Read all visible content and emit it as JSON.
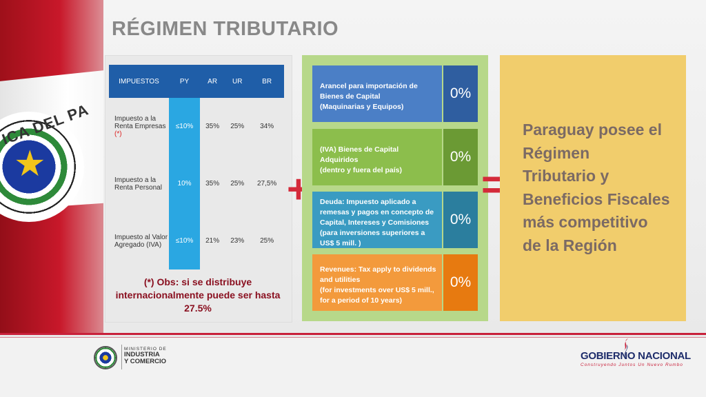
{
  "slide": {
    "title": "RÉGIMEN TRIBUTARIO"
  },
  "table": {
    "headers": [
      "IMPUESTOS",
      "PY",
      "AR",
      "UR",
      "BR"
    ],
    "rows": [
      {
        "name": "Impuesto a la Renta Empresas",
        "mark": "(*)",
        "py": "≤10%",
        "ar": "35%",
        "ur": "25%",
        "br": "34%"
      },
      {
        "name": "Impuesto a la Renta Personal",
        "mark": "",
        "py": "10%",
        "ar": "35%",
        "ur": "25%",
        "br": "27,5%"
      },
      {
        "name": "Impuesto al Valor Agregado (IVA)",
        "mark": "",
        "py": "≤10%",
        "ar": "21%",
        "ur": "23%",
        "br": "25%"
      }
    ],
    "note": "(*) Obs: si se distribuye internacionalmente puede ser hasta 27.5%"
  },
  "operators": {
    "plus": "+",
    "equals": "="
  },
  "benefits": [
    {
      "label_lines": [
        "Arancel para importación de",
        "Bienes de Capital",
        "(Maquinarias y Equipos)"
      ],
      "value": "0%"
    },
    {
      "label_lines": [
        "(IVA) Bienes de Capital",
        "Adquiridos",
        "(dentro y fuera del país)"
      ],
      "value": "0%"
    },
    {
      "label_lines": [
        "Deuda: Impuesto aplicado a",
        "remesas y pagos en concepto de",
        "Capital, Intereses y Comisiones",
        "(para inversiones superiores a",
        "US$ 5 mill. )"
      ],
      "value": "0%"
    },
    {
      "label_lines": [
        "Revenues: Tax apply to dividends",
        "and utilities",
        "(for investments over US$ 5 mill.,",
        "for a period of 10 years)"
      ],
      "value": "0%"
    }
  ],
  "claim": {
    "lines": [
      "Paraguay posee el",
      "Régimen",
      "Tributario y",
      "Beneficios Fiscales",
      "más competitivo",
      "de la Región"
    ]
  },
  "flag": {
    "seal_text": "ICA DEL PA"
  },
  "footer": {
    "ministry_small": "MINISTERIO DE",
    "ministry_line1": "INDUSTRIA",
    "ministry_line2": "Y COMERCIO",
    "gov_name_a": "GOBIERNO",
    "gov_name_b": "NACIONAL",
    "gov_tagline": "Construyendo Juntos Un Nuevo Rumbo"
  },
  "colors": {
    "title": "#888888",
    "header_blue": "#1f5ea8",
    "py_blue": "#2aa7e2",
    "accent_red": "#d42a3a",
    "middle_green": "#b7d88a",
    "right_yellow": "#f1cd6c"
  }
}
